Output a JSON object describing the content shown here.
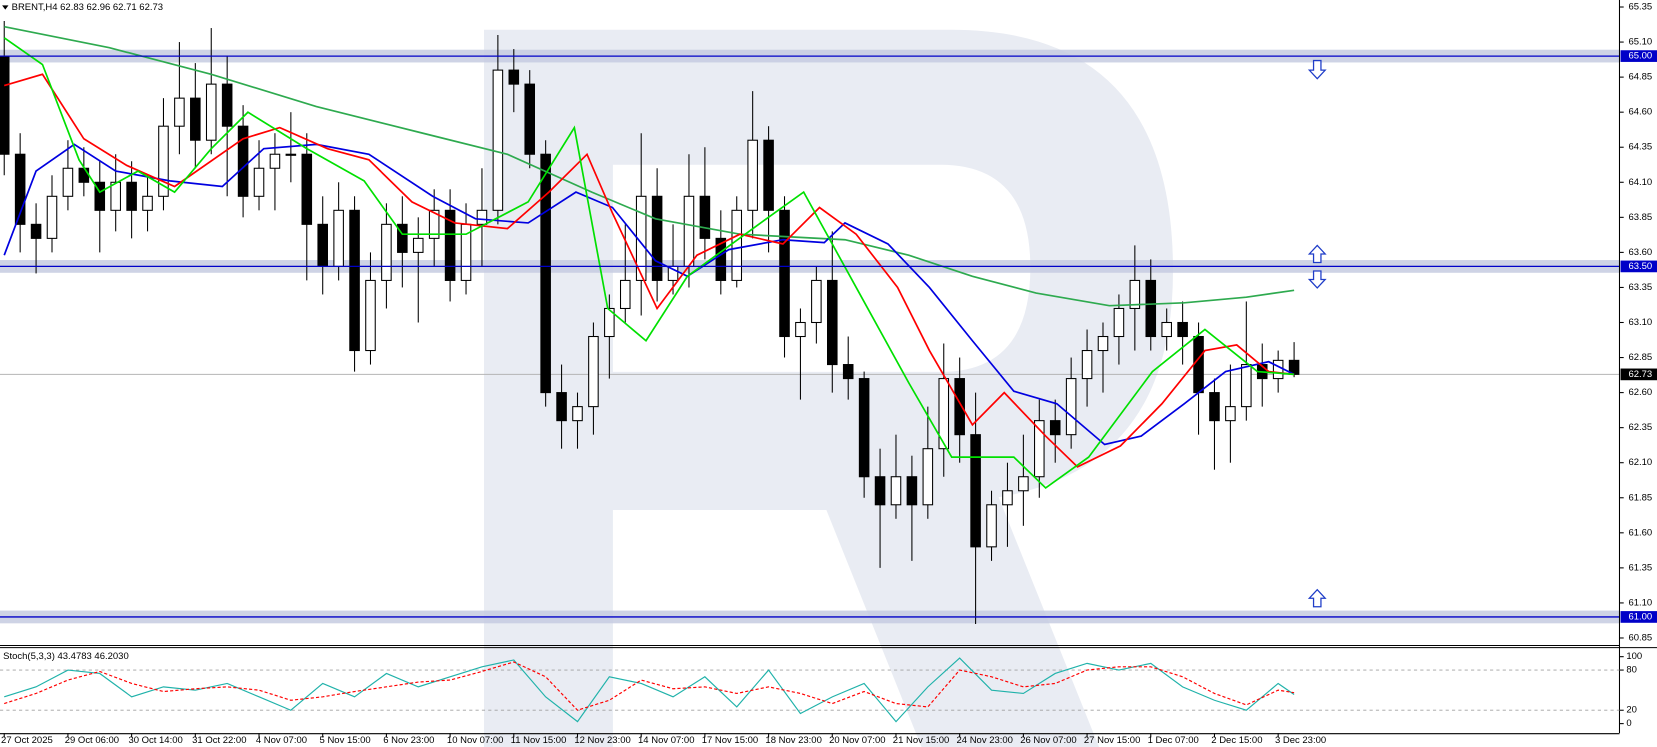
{
  "chart_data": [
    {
      "type": "candlestick",
      "header": "BRENT,H4  62.83 62.96 62.71 62.73",
      "xlim": [
        0,
        101.6
      ],
      "ylim": [
        60.8,
        65.4
      ],
      "yticks": [
        65.35,
        {
          "value": 65.1,
          "label": "65.10"
        },
        64.85,
        {
          "value": 64.6,
          "label": "64.60"
        },
        64.35,
        {
          "value": 64.1,
          "label": "64.10"
        },
        63.85,
        {
          "value": 63.6,
          "label": "63.60"
        },
        63.35,
        {
          "value": 63.1,
          "label": "63.10"
        },
        62.85,
        {
          "value": 62.6,
          "label": "62.60"
        },
        62.35,
        {
          "value": 62.1,
          "label": "62.10"
        },
        61.85,
        {
          "value": 61.6,
          "label": "61.60"
        },
        61.35,
        {
          "value": 61.1,
          "label": "61.10"
        },
        60.85
      ],
      "xticks": [
        {
          "value": 0,
          "label": "27 Oct 2025"
        },
        {
          "value": 4,
          "label": "29 Oct 06:00"
        },
        {
          "value": 8,
          "label": "30 Oct 14:00"
        },
        {
          "value": 12,
          "label": "31 Oct 22:00"
        },
        {
          "value": 16,
          "label": "4 Nov 07:00"
        },
        {
          "value": 20,
          "label": "5 Nov 15:00"
        },
        {
          "value": 24,
          "label": "6 Nov 23:00"
        },
        {
          "value": 28,
          "label": "10 Nov 07:00"
        },
        {
          "value": 32,
          "label": "11 Nov 15:00"
        },
        {
          "value": 36,
          "label": "12 Nov 23:00"
        },
        {
          "value": 40,
          "label": "14 Nov 07:00"
        },
        {
          "value": 44,
          "label": "17 Nov 15:00"
        },
        {
          "value": 48,
          "label": "18 Nov 23:00"
        },
        {
          "value": 52,
          "label": "20 Nov 07:00"
        },
        {
          "value": 56,
          "label": "21 Nov 15:00"
        },
        {
          "value": 60,
          "label": "24 Nov 23:00"
        },
        {
          "value": 64,
          "label": "26 Nov 07:00"
        },
        {
          "value": 68,
          "label": "27 Nov 15:00"
        },
        {
          "value": 72,
          "label": "1 Dec 07:00"
        },
        {
          "value": 76,
          "label": "2 Dec 15:00"
        },
        {
          "value": 80,
          "label": "3 Dec 23:00"
        }
      ],
      "open": [
        65.0,
        64.3,
        63.8,
        63.7,
        64.0,
        64.2,
        64.1,
        63.9,
        64.1,
        63.9,
        64.0,
        64.5,
        64.7,
        64.4,
        64.8,
        64.5,
        64.0,
        64.2,
        64.3,
        64.3,
        63.8,
        63.5,
        63.9,
        62.9,
        63.4,
        63.8,
        63.6,
        63.7,
        63.9,
        63.4,
        63.8,
        63.9,
        64.9,
        64.8,
        64.3,
        62.6,
        62.4,
        62.5,
        63.0,
        63.2,
        63.4,
        64.0,
        63.4,
        63.5,
        64.0,
        63.7,
        63.4,
        63.9,
        64.4,
        63.9,
        63.0,
        63.1,
        63.4,
        62.8,
        62.7,
        62.0,
        61.8,
        62.0,
        61.8,
        62.2,
        62.7,
        62.3,
        61.5,
        61.8,
        61.9,
        62.0,
        62.4,
        62.3,
        62.7,
        62.9,
        63.0,
        63.2,
        63.4,
        63.0,
        63.1,
        63.0,
        62.6,
        62.4,
        62.5,
        62.8,
        62.7,
        62.83
      ],
      "high": [
        65.25,
        64.45,
        63.95,
        64.15,
        64.4,
        64.35,
        64.25,
        64.3,
        64.25,
        64.15,
        64.7,
        65.1,
        64.95,
        65.2,
        65.0,
        64.65,
        64.4,
        64.45,
        64.6,
        64.45,
        64.0,
        64.1,
        64.0,
        63.6,
        63.95,
        64.0,
        63.85,
        64.05,
        64.05,
        63.95,
        64.2,
        65.15,
        65.05,
        64.9,
        64.4,
        62.8,
        62.6,
        63.1,
        63.3,
        63.8,
        64.45,
        64.2,
        63.8,
        64.3,
        64.35,
        63.9,
        64.0,
        64.75,
        64.5,
        64.0,
        63.2,
        63.5,
        63.75,
        63.0,
        62.75,
        62.2,
        62.3,
        62.15,
        62.5,
        62.95,
        62.85,
        62.6,
        61.9,
        62.1,
        62.3,
        62.55,
        62.55,
        62.85,
        63.05,
        63.1,
        63.3,
        63.65,
        63.55,
        63.2,
        63.25,
        63.1,
        62.7,
        62.8,
        63.25,
        62.95,
        62.9,
        62.96
      ],
      "low": [
        64.15,
        63.6,
        63.45,
        63.6,
        63.9,
        64.0,
        63.6,
        63.75,
        63.7,
        63.75,
        63.9,
        64.3,
        64.2,
        64.3,
        64.0,
        63.85,
        63.9,
        63.9,
        64.1,
        63.4,
        63.3,
        63.4,
        62.75,
        62.8,
        63.2,
        63.35,
        63.1,
        63.5,
        63.25,
        63.3,
        63.5,
        63.8,
        64.6,
        64.2,
        62.5,
        62.2,
        62.2,
        62.3,
        62.7,
        63.1,
        63.15,
        63.25,
        63.3,
        63.35,
        63.55,
        63.3,
        63.35,
        63.7,
        63.6,
        62.85,
        62.55,
        62.95,
        62.6,
        62.55,
        61.85,
        61.35,
        61.7,
        61.4,
        61.7,
        62.0,
        62.1,
        60.95,
        61.4,
        61.5,
        61.65,
        61.85,
        62.1,
        62.2,
        62.5,
        62.6,
        62.8,
        62.9,
        62.9,
        62.9,
        62.8,
        62.3,
        62.05,
        62.1,
        62.4,
        62.5,
        62.6,
        62.71
      ],
      "close": [
        64.3,
        63.8,
        63.7,
        64.0,
        64.2,
        64.1,
        63.9,
        64.1,
        63.9,
        64.0,
        64.5,
        64.7,
        64.4,
        64.8,
        64.5,
        64.0,
        64.2,
        64.3,
        64.3,
        63.8,
        63.5,
        63.9,
        62.9,
        63.4,
        63.8,
        63.6,
        63.7,
        63.9,
        63.4,
        63.8,
        63.9,
        64.9,
        64.8,
        64.3,
        62.6,
        62.4,
        62.5,
        63.0,
        63.2,
        63.4,
        64.0,
        63.4,
        63.5,
        64.0,
        63.7,
        63.4,
        63.9,
        64.4,
        63.9,
        63.0,
        63.1,
        63.4,
        62.8,
        62.7,
        62.0,
        61.8,
        62.0,
        61.8,
        62.2,
        62.7,
        62.3,
        61.5,
        61.8,
        61.9,
        62.0,
        62.4,
        62.3,
        62.7,
        62.9,
        63.0,
        63.2,
        63.4,
        63.0,
        63.1,
        63.0,
        62.6,
        62.4,
        62.5,
        62.8,
        62.7,
        62.83,
        62.73
      ],
      "up_color": "#ffffff",
      "down_color": "#000000",
      "series": [
        {
          "color": "#2eaa4f",
          "x": [
            0,
            6.6,
            13.0,
            19.6,
            26.3,
            31.6,
            36.9,
            40.9,
            46.2,
            52.8,
            56.8,
            60.8,
            64.8,
            69.4,
            74.1,
            78.0,
            81.0
          ],
          "values": [
            65.21,
            65.06,
            64.87,
            64.64,
            64.45,
            64.3,
            64.03,
            63.84,
            63.73,
            63.69,
            63.58,
            63.43,
            63.31,
            63.22,
            63.24,
            63.28,
            63.33
          ]
        },
        {
          "color": "#0000e0",
          "x": [
            0,
            2.0,
            4.4,
            7.0,
            10.4,
            13.7,
            16.3,
            19.6,
            22.9,
            26.9,
            29.6,
            32.9,
            35.9,
            38.2,
            40.9,
            42.9,
            45.5,
            48.9,
            51.5,
            52.8,
            55.5,
            58.1,
            60.8,
            63.4,
            66.1,
            69.1,
            71.4,
            74.1,
            76.7,
            79.4,
            81.0
          ],
          "values": [
            63.58,
            64.18,
            64.37,
            64.18,
            64.11,
            64.07,
            64.34,
            64.37,
            64.3,
            64.0,
            63.84,
            63.81,
            64.03,
            63.92,
            63.54,
            63.43,
            63.62,
            63.69,
            63.67,
            63.81,
            63.66,
            63.35,
            62.97,
            62.61,
            62.52,
            62.23,
            62.29,
            62.52,
            62.75,
            62.82,
            62.73
          ]
        },
        {
          "color": "#ff0000",
          "x": [
            0,
            2.4,
            5.0,
            7.7,
            10.7,
            15.0,
            17.3,
            20.3,
            22.9,
            25.6,
            28.3,
            31.6,
            34.2,
            36.6,
            38.2,
            41.0,
            43.5,
            46.2,
            48.9,
            51.2,
            53.5,
            56.1,
            58.1,
            60.8,
            62.8,
            65.4,
            67.4,
            70.1,
            72.7,
            75.4,
            77.4,
            79.4,
            81.0
          ],
          "values": [
            64.79,
            64.87,
            64.41,
            64.22,
            64.07,
            64.41,
            64.49,
            64.34,
            64.26,
            63.96,
            63.81,
            63.77,
            64.03,
            64.3,
            63.88,
            63.2,
            63.58,
            63.73,
            63.66,
            63.92,
            63.73,
            63.35,
            62.9,
            62.37,
            62.6,
            62.29,
            62.07,
            62.22,
            62.52,
            62.9,
            62.94,
            62.75,
            62.73
          ]
        },
        {
          "color": "#00e000",
          "x": [
            0,
            2.4,
            4.7,
            6.0,
            8.4,
            10.7,
            13.0,
            15.3,
            19.0,
            22.6,
            25.0,
            29.0,
            32.9,
            35.8,
            37.9,
            40.3,
            42.9,
            47.5,
            50.2,
            53.5,
            56.8,
            59.5,
            63.4,
            65.4,
            68.1,
            72.1,
            75.4,
            78.7,
            81.0
          ],
          "values": [
            65.13,
            64.94,
            64.26,
            64.03,
            64.18,
            64.03,
            64.34,
            64.6,
            64.34,
            64.11,
            63.73,
            63.73,
            63.96,
            64.49,
            63.2,
            62.97,
            63.43,
            63.81,
            64.03,
            63.35,
            62.67,
            62.14,
            62.14,
            61.92,
            62.14,
            62.75,
            63.05,
            62.75,
            62.73
          ]
        }
      ],
      "levels": [
        {
          "value": 65.0,
          "label": "65.00"
        },
        {
          "value": 63.5,
          "label": "63.50"
        },
        {
          "value": 61.0,
          "label": "61.00"
        }
      ],
      "level_color": "#0000c8",
      "band_color": "#c6cbe0",
      "last_price": {
        "value": 62.73,
        "label": "62.73"
      }
    },
    {
      "type": "line",
      "title": "Stoch(5,3,3) 43.4783 46.2030",
      "xlim": [
        0,
        101.6
      ],
      "ylim": [
        0,
        100
      ],
      "yticks": [
        100,
        80,
        20,
        0
      ],
      "dashed_levels": [
        80,
        20
      ],
      "x": [
        0,
        2,
        4,
        6,
        8,
        10,
        12,
        14,
        16,
        18,
        20,
        22,
        24,
        26,
        28,
        30,
        32,
        34,
        36,
        38,
        40,
        42,
        44,
        46,
        48,
        50,
        52,
        54,
        56,
        58,
        60,
        62,
        64,
        66,
        68,
        70,
        72,
        74,
        76,
        78,
        80,
        81
      ],
      "series": [
        {
          "color": "#20b2aa",
          "dashed": false,
          "values": [
            40,
            55,
            80,
            75,
            40,
            55,
            50,
            60,
            40,
            20,
            60,
            40,
            75,
            55,
            70,
            85,
            95,
            40,
            3,
            70,
            60,
            40,
            70,
            25,
            80,
            15,
            40,
            60,
            3,
            55,
            98,
            50,
            45,
            75,
            90,
            80,
            90,
            55,
            35,
            20,
            60,
            43.48
          ]
        },
        {
          "color": "#ff0000",
          "dashed": true,
          "values": [
            30,
            45,
            65,
            78,
            60,
            48,
            52,
            55,
            50,
            35,
            40,
            48,
            55,
            62,
            65,
            78,
            92,
            70,
            20,
            35,
            65,
            52,
            55,
            45,
            55,
            45,
            30,
            48,
            30,
            25,
            80,
            70,
            55,
            60,
            80,
            85,
            85,
            70,
            45,
            28,
            50,
            46.2
          ]
        }
      ]
    }
  ]
}
